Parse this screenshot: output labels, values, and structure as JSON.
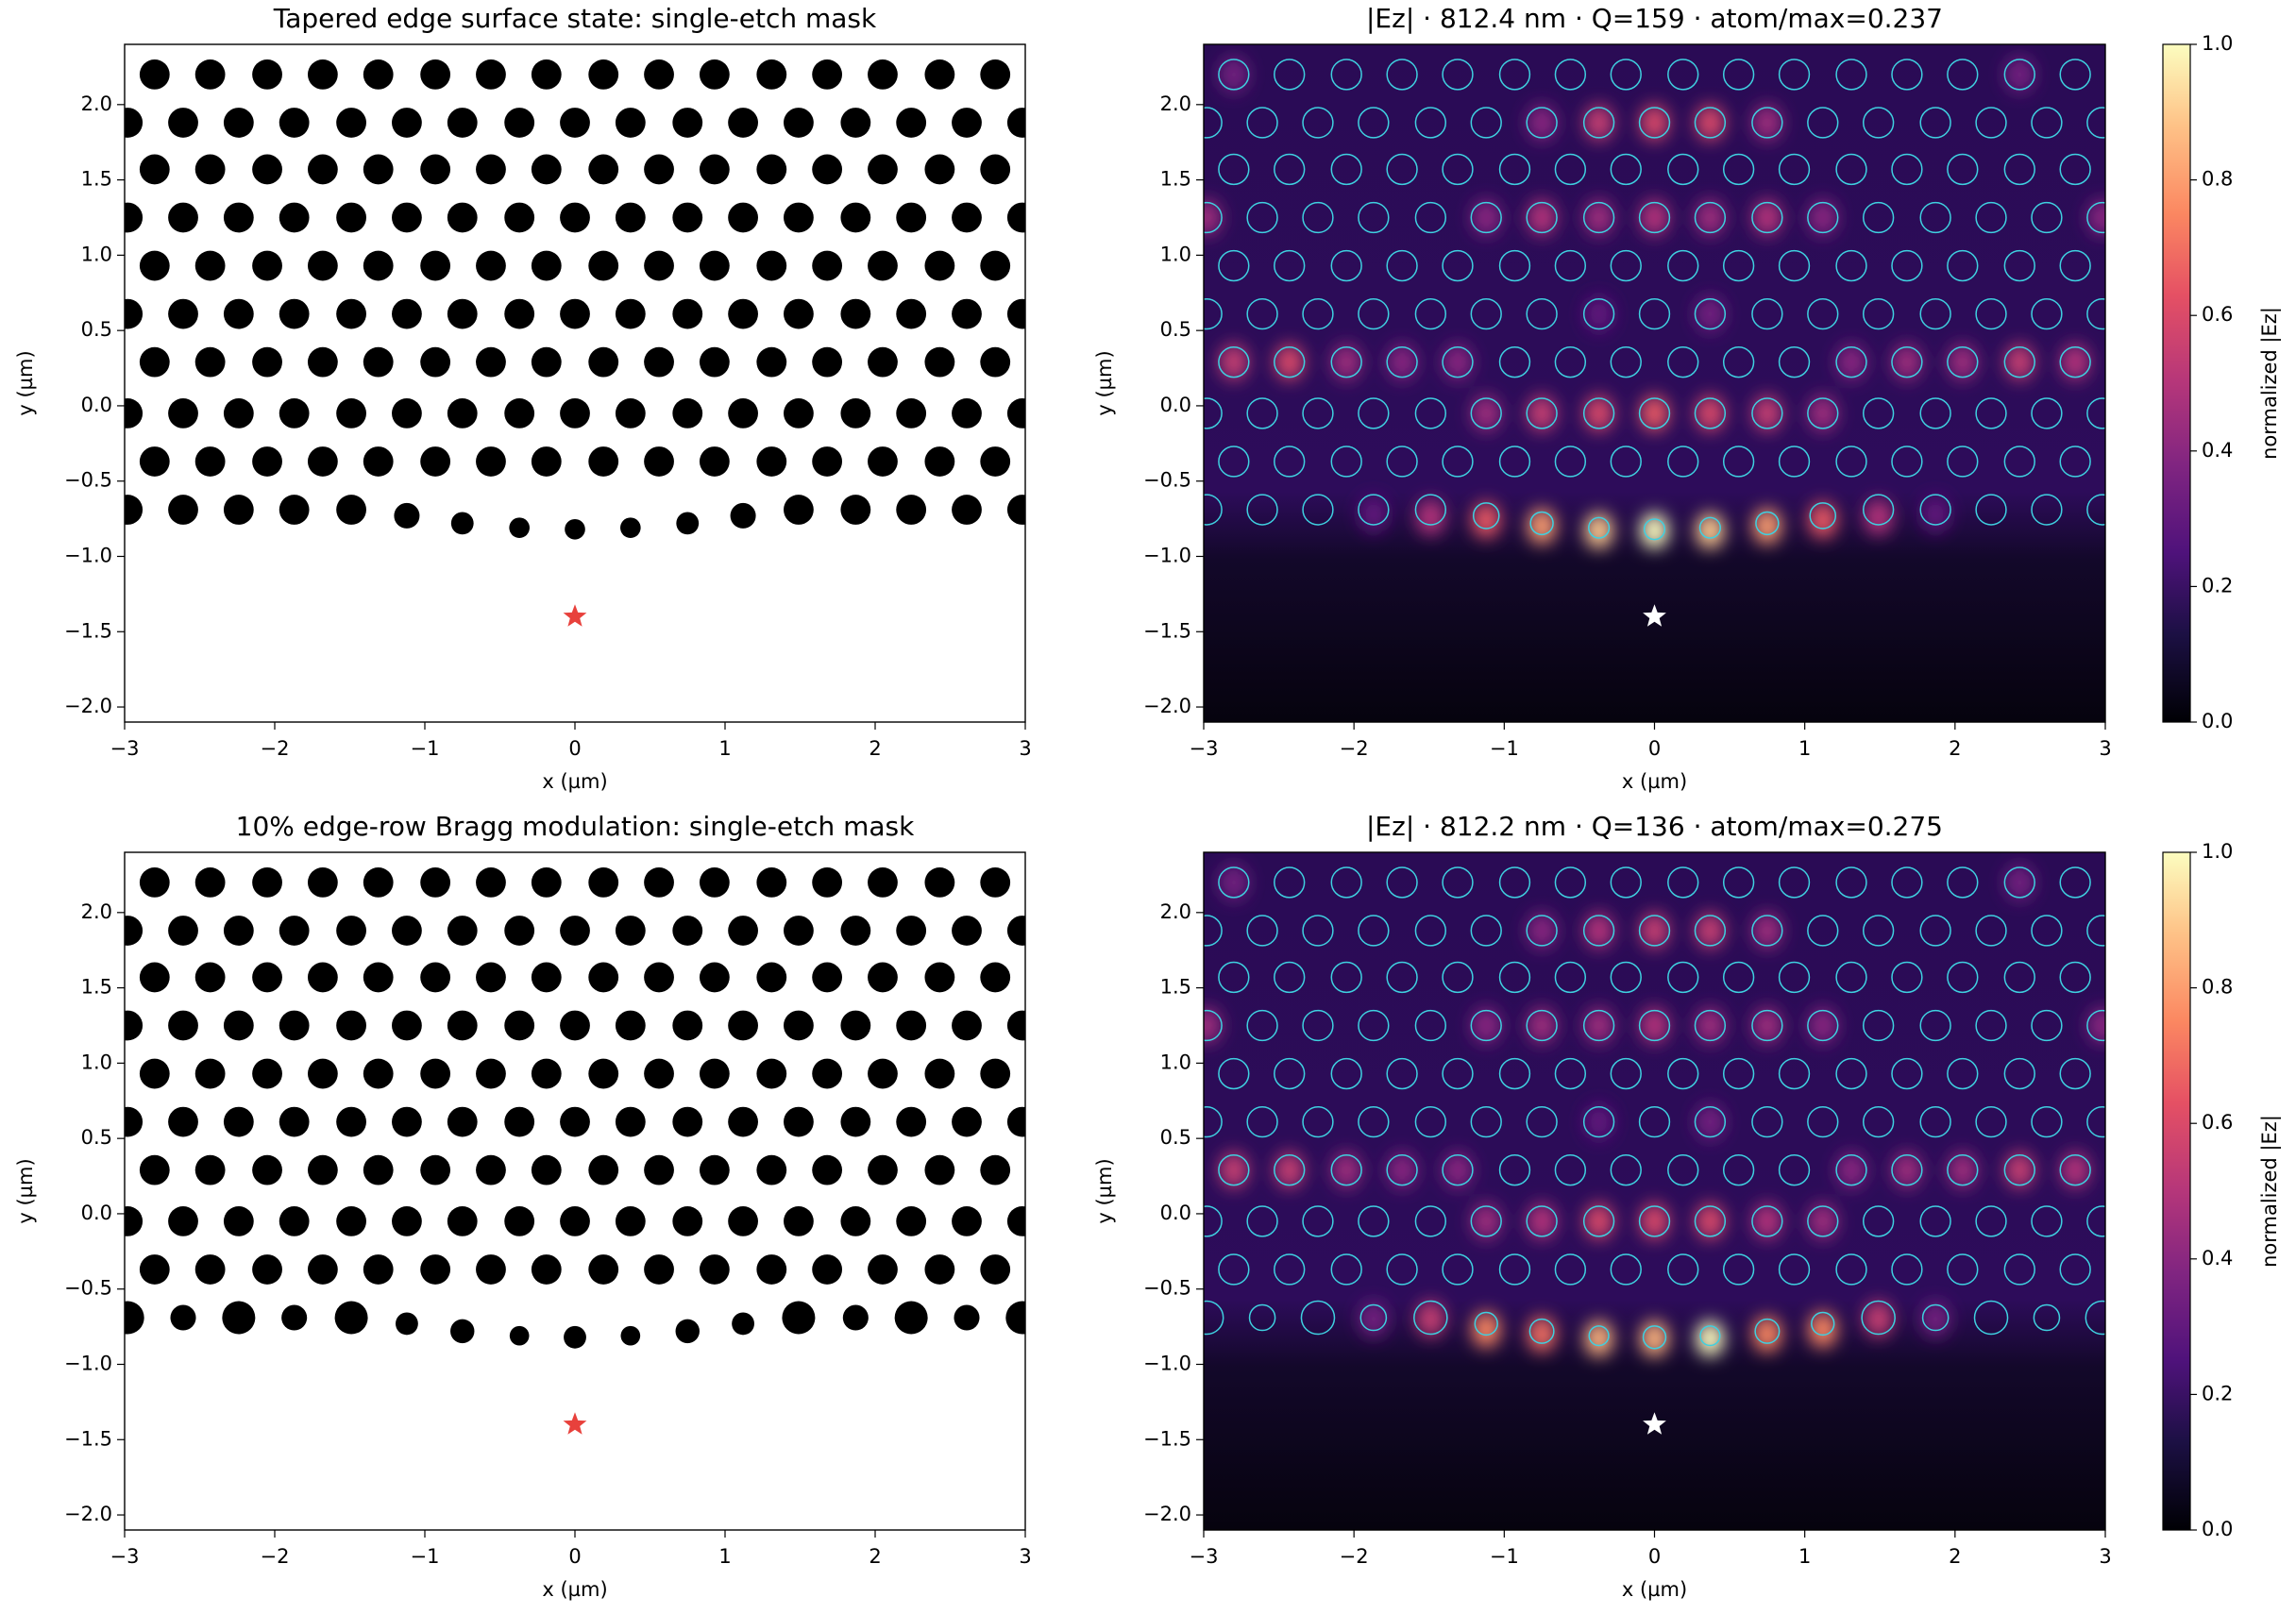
{
  "chart_data": [
    {
      "type": "mask",
      "title": "Tapered edge surface state: single-etch mask",
      "xlabel": "x (µm)",
      "ylabel": "y (µm)",
      "xlim": [
        -3,
        3
      ],
      "ylim": [
        -2.1,
        2.4
      ],
      "xticks": [
        {
          "value": -3,
          "label": "−3"
        },
        {
          "value": -2,
          "label": "−2"
        },
        {
          "value": -1,
          "label": "−1"
        },
        0,
        1,
        2,
        3
      ],
      "yticks": [
        {
          "value": -2,
          "label": "−2.0"
        },
        {
          "value": -1.5,
          "label": "−1.5"
        },
        {
          "value": -1,
          "label": "−1.0"
        },
        {
          "value": -0.5,
          "label": "−0.5"
        },
        {
          "value": 0,
          "label": "0.0"
        },
        0.5,
        {
          "value": 1,
          "label": "1.0"
        },
        1.5,
        {
          "value": 2,
          "label": "2.0"
        }
      ],
      "hole_color": "#000000",
      "rows": [
        {
          "y": 2.2,
          "r": 0.1,
          "x": [
            -2.8,
            -2.43,
            -2.05,
            -1.68,
            -1.31,
            -0.93,
            -0.56,
            -0.19,
            0.19,
            0.56,
            0.93,
            1.31,
            1.68,
            2.05,
            2.43,
            2.8
          ]
        },
        {
          "y": 1.88,
          "r": 0.1,
          "x": [
            -2.98,
            -2.61,
            -2.24,
            -1.87,
            -1.49,
            -1.12,
            -0.75,
            -0.37,
            0,
            0.37,
            0.75,
            1.12,
            1.49,
            1.87,
            2.24,
            2.61,
            2.98
          ]
        },
        {
          "y": 1.57,
          "r": 0.1,
          "x": [
            -2.8,
            -2.43,
            -2.05,
            -1.68,
            -1.31,
            -0.93,
            -0.56,
            -0.19,
            0.19,
            0.56,
            0.93,
            1.31,
            1.68,
            2.05,
            2.43,
            2.8
          ]
        },
        {
          "y": 1.25,
          "r": 0.1,
          "x": [
            -2.98,
            -2.61,
            -2.24,
            -1.87,
            -1.49,
            -1.12,
            -0.75,
            -0.37,
            0,
            0.37,
            0.75,
            1.12,
            1.49,
            1.87,
            2.24,
            2.61,
            2.98
          ]
        },
        {
          "y": 0.93,
          "r": 0.1,
          "x": [
            -2.8,
            -2.43,
            -2.05,
            -1.68,
            -1.31,
            -0.93,
            -0.56,
            -0.19,
            0.19,
            0.56,
            0.93,
            1.31,
            1.68,
            2.05,
            2.43,
            2.8
          ]
        },
        {
          "y": 0.61,
          "r": 0.1,
          "x": [
            -2.98,
            -2.61,
            -2.24,
            -1.87,
            -1.49,
            -1.12,
            -0.75,
            -0.37,
            0,
            0.37,
            0.75,
            1.12,
            1.49,
            1.87,
            2.24,
            2.61,
            2.98
          ]
        },
        {
          "y": 0.29,
          "r": 0.1,
          "x": [
            -2.8,
            -2.43,
            -2.05,
            -1.68,
            -1.31,
            -0.93,
            -0.56,
            -0.19,
            0.19,
            0.56,
            0.93,
            1.31,
            1.68,
            2.05,
            2.43,
            2.8
          ]
        },
        {
          "y": -0.05,
          "r": 0.1,
          "x": [
            -2.98,
            -2.61,
            -2.24,
            -1.87,
            -1.49,
            -1.12,
            -0.75,
            -0.37,
            0,
            0.37,
            0.75,
            1.12,
            1.49,
            1.87,
            2.24,
            2.61,
            2.98
          ]
        },
        {
          "y": -0.37,
          "r": 0.1,
          "x": [
            -2.8,
            -2.43,
            -2.05,
            -1.68,
            -1.31,
            -0.93,
            -0.56,
            -0.19,
            0.19,
            0.56,
            0.93,
            1.31,
            1.68,
            2.05,
            2.43,
            2.8
          ]
        }
      ],
      "edge_row": {
        "x": [
          -2.98,
          -2.61,
          -2.24,
          -1.87,
          -1.49,
          -1.12,
          -0.75,
          -0.37,
          0,
          0.37,
          0.75,
          1.12,
          1.49,
          1.87,
          2.24,
          2.61,
          2.98
        ],
        "y": [
          -0.69,
          -0.69,
          -0.69,
          -0.69,
          -0.69,
          -0.73,
          -0.78,
          -0.81,
          -0.82,
          -0.81,
          -0.78,
          -0.73,
          -0.69,
          -0.69,
          -0.69,
          -0.69,
          -0.69
        ],
        "r": [
          0.1,
          0.1,
          0.1,
          0.1,
          0.1,
          0.085,
          0.075,
          0.068,
          0.068,
          0.068,
          0.075,
          0.085,
          0.1,
          0.1,
          0.1,
          0.1,
          0.1
        ]
      },
      "source": {
        "x": 0,
        "y": -1.4,
        "color": "#e8413c"
      }
    },
    {
      "type": "field",
      "title": "|Ez| · 812.4 nm · Q=159 · atom/max=0.237",
      "xlabel": "x (µm)",
      "ylabel": "y (µm)",
      "xlim": [
        -3,
        3
      ],
      "ylim": [
        -2.1,
        2.4
      ],
      "xticks": [
        {
          "value": -3,
          "label": "−3"
        },
        {
          "value": -2,
          "label": "−2"
        },
        {
          "value": -1,
          "label": "−1"
        },
        0,
        1,
        2,
        3
      ],
      "yticks": [
        {
          "value": -2,
          "label": "−2.0"
        },
        {
          "value": -1.5,
          "label": "−1.5"
        },
        {
          "value": -1,
          "label": "−1.0"
        },
        {
          "value": -0.5,
          "label": "−0.5"
        },
        {
          "value": 0,
          "label": "0.0"
        },
        0.5,
        {
          "value": 1,
          "label": "1.0"
        },
        1.5,
        {
          "value": 2,
          "label": "2.0"
        }
      ],
      "colormap": "magma",
      "overlay_color": "#3fd0e0",
      "peaks": {
        "x": [
          -1.87,
          -1.49,
          -1.12,
          -0.75,
          -0.37,
          0,
          0.37,
          0.75,
          1.12,
          1.49,
          1.87,
          -1.12,
          -0.75,
          -0.37,
          0,
          0.37,
          0.75,
          1.12,
          -2.8,
          -2.43,
          -2.05,
          -1.68,
          -1.31,
          1.31,
          1.68,
          2.05,
          2.43,
          2.8,
          -2.98,
          -1.12,
          -0.75,
          -0.37,
          0,
          0.37,
          0.75,
          1.12,
          2.98,
          -0.75,
          -0.37,
          0,
          0.37,
          0.75,
          -0.37,
          0.37,
          -2.8,
          2.43
        ],
        "y": [
          -0.72,
          -0.74,
          -0.76,
          -0.8,
          -0.83,
          -0.83,
          -0.83,
          -0.8,
          -0.76,
          -0.74,
          -0.72,
          -0.05,
          -0.05,
          -0.05,
          -0.05,
          -0.05,
          -0.05,
          -0.05,
          0.29,
          0.29,
          0.29,
          0.29,
          0.29,
          0.29,
          0.29,
          0.29,
          0.29,
          0.29,
          1.25,
          1.25,
          1.25,
          1.25,
          1.25,
          1.25,
          1.25,
          1.25,
          1.25,
          1.88,
          1.88,
          1.88,
          1.88,
          1.88,
          0.61,
          0.61,
          2.2,
          2.2
        ],
        "values": [
          0.3,
          0.5,
          0.65,
          0.8,
          0.9,
          1.0,
          0.9,
          0.8,
          0.65,
          0.5,
          0.3,
          0.45,
          0.55,
          0.6,
          0.65,
          0.6,
          0.55,
          0.45,
          0.55,
          0.6,
          0.45,
          0.4,
          0.4,
          0.4,
          0.45,
          0.45,
          0.55,
          0.5,
          0.45,
          0.4,
          0.5,
          0.45,
          0.5,
          0.45,
          0.5,
          0.4,
          0.4,
          0.4,
          0.55,
          0.6,
          0.6,
          0.45,
          0.3,
          0.35,
          0.35,
          0.35
        ]
      },
      "source": {
        "x": 0,
        "y": -1.4,
        "color": "#ffffff"
      },
      "colorbar": {
        "label": "normalized |Ez|",
        "clim": [
          0,
          1
        ],
        "ticks": [
          {
            "value": 0,
            "label": "0.0"
          },
          0.2,
          0.4,
          0.6,
          0.8,
          {
            "value": 1,
            "label": "1.0"
          }
        ]
      }
    },
    {
      "type": "mask",
      "title": "10% edge-row Bragg modulation: single-etch mask",
      "xlabel": "x (µm)",
      "ylabel": "y (µm)",
      "xlim": [
        -3,
        3
      ],
      "ylim": [
        -2.1,
        2.4
      ],
      "xticks": [
        {
          "value": -3,
          "label": "−3"
        },
        {
          "value": -2,
          "label": "−2"
        },
        {
          "value": -1,
          "label": "−1"
        },
        0,
        1,
        2,
        3
      ],
      "yticks": [
        {
          "value": -2,
          "label": "−2.0"
        },
        {
          "value": -1.5,
          "label": "−1.5"
        },
        {
          "value": -1,
          "label": "−1.0"
        },
        {
          "value": -0.5,
          "label": "−0.5"
        },
        {
          "value": 0,
          "label": "0.0"
        },
        0.5,
        {
          "value": 1,
          "label": "1.0"
        },
        1.5,
        {
          "value": 2,
          "label": "2.0"
        }
      ],
      "hole_color": "#000000",
      "rows": [
        {
          "y": 2.2,
          "r": 0.1,
          "x": [
            -2.8,
            -2.43,
            -2.05,
            -1.68,
            -1.31,
            -0.93,
            -0.56,
            -0.19,
            0.19,
            0.56,
            0.93,
            1.31,
            1.68,
            2.05,
            2.43,
            2.8
          ]
        },
        {
          "y": 1.88,
          "r": 0.1,
          "x": [
            -2.98,
            -2.61,
            -2.24,
            -1.87,
            -1.49,
            -1.12,
            -0.75,
            -0.37,
            0,
            0.37,
            0.75,
            1.12,
            1.49,
            1.87,
            2.24,
            2.61,
            2.98
          ]
        },
        {
          "y": 1.57,
          "r": 0.1,
          "x": [
            -2.8,
            -2.43,
            -2.05,
            -1.68,
            -1.31,
            -0.93,
            -0.56,
            -0.19,
            0.19,
            0.56,
            0.93,
            1.31,
            1.68,
            2.05,
            2.43,
            2.8
          ]
        },
        {
          "y": 1.25,
          "r": 0.1,
          "x": [
            -2.98,
            -2.61,
            -2.24,
            -1.87,
            -1.49,
            -1.12,
            -0.75,
            -0.37,
            0,
            0.37,
            0.75,
            1.12,
            1.49,
            1.87,
            2.24,
            2.61,
            2.98
          ]
        },
        {
          "y": 0.93,
          "r": 0.1,
          "x": [
            -2.8,
            -2.43,
            -2.05,
            -1.68,
            -1.31,
            -0.93,
            -0.56,
            -0.19,
            0.19,
            0.56,
            0.93,
            1.31,
            1.68,
            2.05,
            2.43,
            2.8
          ]
        },
        {
          "y": 0.61,
          "r": 0.1,
          "x": [
            -2.98,
            -2.61,
            -2.24,
            -1.87,
            -1.49,
            -1.12,
            -0.75,
            -0.37,
            0,
            0.37,
            0.75,
            1.12,
            1.49,
            1.87,
            2.24,
            2.61,
            2.98
          ]
        },
        {
          "y": 0.29,
          "r": 0.1,
          "x": [
            -2.8,
            -2.43,
            -2.05,
            -1.68,
            -1.31,
            -0.93,
            -0.56,
            -0.19,
            0.19,
            0.56,
            0.93,
            1.31,
            1.68,
            2.05,
            2.43,
            2.8
          ]
        },
        {
          "y": -0.05,
          "r": 0.1,
          "x": [
            -2.98,
            -2.61,
            -2.24,
            -1.87,
            -1.49,
            -1.12,
            -0.75,
            -0.37,
            0,
            0.37,
            0.75,
            1.12,
            1.49,
            1.87,
            2.24,
            2.61,
            2.98
          ]
        },
        {
          "y": -0.37,
          "r": 0.1,
          "x": [
            -2.8,
            -2.43,
            -2.05,
            -1.68,
            -1.31,
            -0.93,
            -0.56,
            -0.19,
            0.19,
            0.56,
            0.93,
            1.31,
            1.68,
            2.05,
            2.43,
            2.8
          ]
        }
      ],
      "edge_row": {
        "x": [
          -2.98,
          -2.61,
          -2.24,
          -1.87,
          -1.49,
          -1.12,
          -0.75,
          -0.37,
          0,
          0.37,
          0.75,
          1.12,
          1.49,
          1.87,
          2.24,
          2.61,
          2.98
        ],
        "y": [
          -0.69,
          -0.69,
          -0.69,
          -0.69,
          -0.69,
          -0.73,
          -0.78,
          -0.81,
          -0.82,
          -0.81,
          -0.78,
          -0.73,
          -0.69,
          -0.69,
          -0.69,
          -0.69,
          -0.69
        ],
        "r": [
          0.11,
          0.085,
          0.11,
          0.085,
          0.11,
          0.075,
          0.08,
          0.065,
          0.075,
          0.065,
          0.08,
          0.075,
          0.11,
          0.085,
          0.11,
          0.085,
          0.11
        ]
      },
      "source": {
        "x": 0,
        "y": -1.4,
        "color": "#e8413c"
      }
    },
    {
      "type": "field",
      "title": "|Ez| · 812.2 nm · Q=136 · atom/max=0.275",
      "xlabel": "x (µm)",
      "ylabel": "y (µm)",
      "xlim": [
        -3,
        3
      ],
      "ylim": [
        -2.1,
        2.4
      ],
      "xticks": [
        {
          "value": -3,
          "label": "−3"
        },
        {
          "value": -2,
          "label": "−2"
        },
        {
          "value": -1,
          "label": "−1"
        },
        0,
        1,
        2,
        3
      ],
      "yticks": [
        {
          "value": -2,
          "label": "−2.0"
        },
        {
          "value": -1.5,
          "label": "−1.5"
        },
        {
          "value": -1,
          "label": "−1.0"
        },
        {
          "value": -0.5,
          "label": "−0.5"
        },
        {
          "value": 0,
          "label": "0.0"
        },
        0.5,
        {
          "value": 1,
          "label": "1.0"
        },
        1.5,
        {
          "value": 2,
          "label": "2.0"
        }
      ],
      "colormap": "magma",
      "overlay_color": "#3fd0e0",
      "peaks": {
        "x": [
          -1.87,
          -1.49,
          -1.12,
          -0.75,
          -0.37,
          0,
          0.37,
          0.75,
          1.12,
          1.49,
          1.87,
          -1.12,
          -0.75,
          -0.37,
          0,
          0.37,
          0.75,
          1.12,
          -2.8,
          -2.43,
          -2.05,
          -1.68,
          -1.31,
          1.31,
          1.68,
          2.05,
          2.43,
          2.8,
          -2.98,
          -1.12,
          -0.75,
          -0.37,
          0,
          0.37,
          0.75,
          1.12,
          2.98,
          -0.75,
          -0.37,
          0,
          0.37,
          0.75,
          -0.37,
          0.37,
          -2.8,
          2.43
        ],
        "y": [
          -0.7,
          -0.7,
          -0.77,
          -0.8,
          -0.83,
          -0.83,
          -0.83,
          -0.8,
          -0.77,
          -0.7,
          -0.7,
          -0.05,
          -0.05,
          -0.05,
          -0.05,
          -0.05,
          -0.05,
          -0.05,
          0.29,
          0.29,
          0.29,
          0.29,
          0.29,
          0.29,
          0.29,
          0.29,
          0.29,
          0.29,
          1.25,
          1.25,
          1.25,
          1.25,
          1.25,
          1.25,
          1.25,
          1.25,
          1.25,
          1.88,
          1.88,
          1.88,
          1.88,
          1.88,
          0.61,
          0.61,
          2.2,
          2.2
        ],
        "values": [
          0.35,
          0.55,
          0.75,
          0.7,
          0.85,
          0.85,
          1.0,
          0.75,
          0.75,
          0.55,
          0.35,
          0.45,
          0.5,
          0.6,
          0.6,
          0.6,
          0.5,
          0.45,
          0.55,
          0.55,
          0.45,
          0.4,
          0.4,
          0.4,
          0.45,
          0.45,
          0.55,
          0.5,
          0.45,
          0.4,
          0.45,
          0.45,
          0.5,
          0.45,
          0.45,
          0.4,
          0.4,
          0.4,
          0.5,
          0.55,
          0.55,
          0.45,
          0.3,
          0.35,
          0.35,
          0.35
        ]
      },
      "source": {
        "x": 0,
        "y": -1.4,
        "color": "#ffffff"
      },
      "colorbar": {
        "label": "normalized |Ez|",
        "clim": [
          0,
          1
        ],
        "ticks": [
          {
            "value": 0,
            "label": "0.0"
          },
          0.2,
          0.4,
          0.6,
          0.8,
          {
            "value": 1,
            "label": "1.0"
          }
        ]
      }
    }
  ]
}
